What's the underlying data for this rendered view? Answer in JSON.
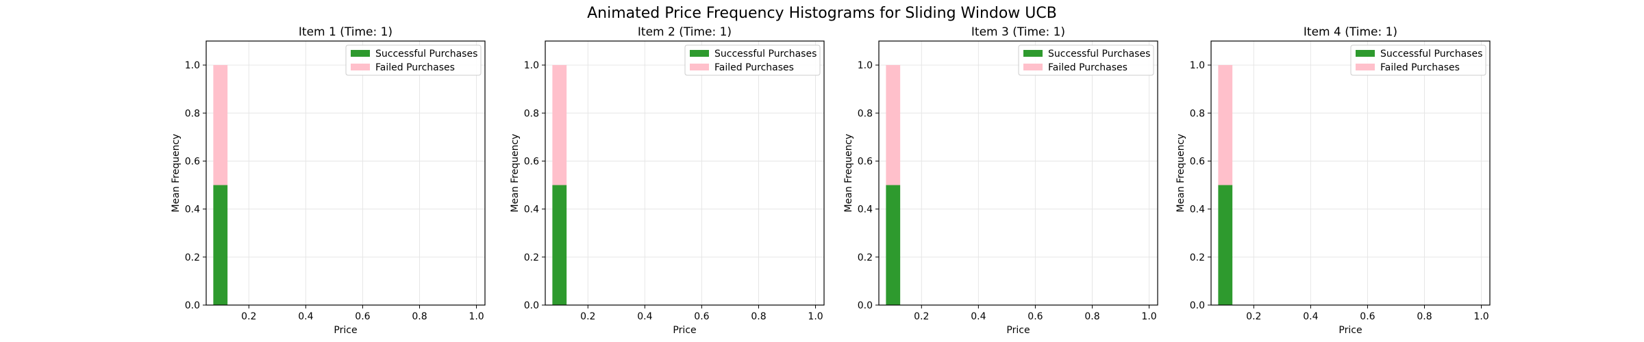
{
  "figure_title": "Animated Price Frequency Histograms for Sliding Window UCB",
  "colors": {
    "success": "#2e9a2e",
    "failed": "#ffc0cb",
    "grid": "#e6e6e6",
    "axis": "#000000"
  },
  "chart_data": [
    {
      "type": "bar",
      "stacked": true,
      "title": "Item 1 (Time: 1)",
      "xlabel": "Price",
      "ylabel": "Mean Frequency",
      "xlim": [
        0.05,
        1.03
      ],
      "ylim": [
        0,
        1.1
      ],
      "xticks": [
        "0.2",
        "0.4",
        "0.6",
        "0.8",
        "1.0"
      ],
      "yticks": [
        "0.0",
        "0.2",
        "0.4",
        "0.6",
        "0.8",
        "1.0"
      ],
      "grid": true,
      "legend_position": "upper right",
      "bin_width": 0.05,
      "x": [
        0.1
      ],
      "series": [
        {
          "name": "Successful Purchases",
          "values": [
            0.5
          ]
        },
        {
          "name": "Failed Purchases",
          "values": [
            0.5
          ]
        }
      ]
    },
    {
      "type": "bar",
      "stacked": true,
      "title": "Item 2 (Time: 1)",
      "xlabel": "Price",
      "ylabel": "Mean Frequency",
      "xlim": [
        0.05,
        1.03
      ],
      "ylim": [
        0,
        1.1
      ],
      "xticks": [
        "0.2",
        "0.4",
        "0.6",
        "0.8",
        "1.0"
      ],
      "yticks": [
        "0.0",
        "0.2",
        "0.4",
        "0.6",
        "0.8",
        "1.0"
      ],
      "grid": true,
      "legend_position": "upper right",
      "bin_width": 0.05,
      "x": [
        0.1
      ],
      "series": [
        {
          "name": "Successful Purchases",
          "values": [
            0.5
          ]
        },
        {
          "name": "Failed Purchases",
          "values": [
            0.5
          ]
        }
      ]
    },
    {
      "type": "bar",
      "stacked": true,
      "title": "Item 3 (Time: 1)",
      "xlabel": "Price",
      "ylabel": "Mean Frequency",
      "xlim": [
        0.05,
        1.03
      ],
      "ylim": [
        0,
        1.1
      ],
      "xticks": [
        "0.2",
        "0.4",
        "0.6",
        "0.8",
        "1.0"
      ],
      "yticks": [
        "0.0",
        "0.2",
        "0.4",
        "0.6",
        "0.8",
        "1.0"
      ],
      "grid": true,
      "legend_position": "upper right",
      "bin_width": 0.05,
      "x": [
        0.1
      ],
      "series": [
        {
          "name": "Successful Purchases",
          "values": [
            0.5
          ]
        },
        {
          "name": "Failed Purchases",
          "values": [
            0.5
          ]
        }
      ]
    },
    {
      "type": "bar",
      "stacked": true,
      "title": "Item 4 (Time: 1)",
      "xlabel": "Price",
      "ylabel": "Mean Frequency",
      "xlim": [
        0.05,
        1.03
      ],
      "ylim": [
        0,
        1.1
      ],
      "xticks": [
        "0.2",
        "0.4",
        "0.6",
        "0.8",
        "1.0"
      ],
      "yticks": [
        "0.0",
        "0.2",
        "0.4",
        "0.6",
        "0.8",
        "1.0"
      ],
      "grid": true,
      "legend_position": "upper right",
      "bin_width": 0.05,
      "x": [
        0.1
      ],
      "series": [
        {
          "name": "Successful Purchases",
          "values": [
            0.5
          ]
        },
        {
          "name": "Failed Purchases",
          "values": [
            0.5
          ]
        }
      ]
    }
  ]
}
